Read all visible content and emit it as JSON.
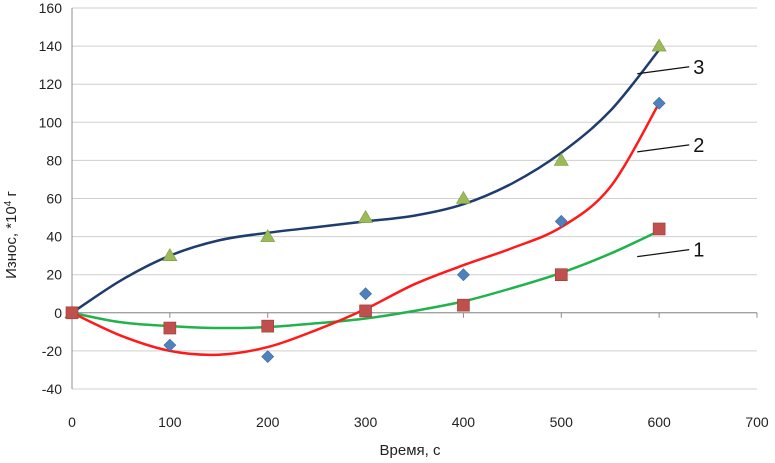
{
  "chart_data": {
    "type": "scatter",
    "xlabel": "Время, с",
    "ylabel_main": "Износ, *10",
    "ylabel_sup": "4",
    "ylabel_unit": " г",
    "xlim": [
      0,
      700
    ],
    "ylim": [
      -40,
      160
    ],
    "xticks": [
      "0",
      "100",
      "200",
      "300",
      "400",
      "500",
      "600",
      "700"
    ],
    "yticks": [
      "-40",
      "-20",
      "0",
      "20",
      "40",
      "60",
      "80",
      "100",
      "120",
      "140",
      "160"
    ],
    "grid": "horizontal",
    "series": [
      {
        "label": "1",
        "marker": "square",
        "marker_color": "#c0504d",
        "line_color": "#22b24c",
        "x": [
          0,
          100,
          200,
          300,
          400,
          500,
          600
        ],
        "values": [
          0,
          -8,
          -7,
          1,
          4,
          20,
          44
        ],
        "trend": [
          [
            0,
            0
          ],
          [
            50,
            -5
          ],
          [
            100,
            -7
          ],
          [
            150,
            -8
          ],
          [
            200,
            -7.5
          ],
          [
            250,
            -5.5
          ],
          [
            300,
            -3
          ],
          [
            350,
            1
          ],
          [
            400,
            6
          ],
          [
            450,
            13
          ],
          [
            500,
            21
          ],
          [
            550,
            31
          ],
          [
            600,
            43
          ]
        ]
      },
      {
        "label": "2",
        "marker": "diamond",
        "marker_color": "#4f81bd",
        "line_color": "#ff1a1a",
        "x": [
          0,
          100,
          200,
          300,
          400,
          500,
          600
        ],
        "values": [
          0,
          -17,
          -23,
          10,
          20,
          48,
          110
        ],
        "trend": [
          [
            0,
            0
          ],
          [
            50,
            -12
          ],
          [
            100,
            -20
          ],
          [
            150,
            -22
          ],
          [
            200,
            -18
          ],
          [
            250,
            -9
          ],
          [
            300,
            2
          ],
          [
            350,
            15
          ],
          [
            400,
            25
          ],
          [
            450,
            34
          ],
          [
            500,
            45
          ],
          [
            550,
            66
          ],
          [
            600,
            110
          ]
        ]
      },
      {
        "label": "3",
        "marker": "triangle",
        "marker_color": "#9bbb59",
        "line_color": "#1f3c6e",
        "x": [
          0,
          100,
          200,
          300,
          400,
          500,
          600
        ],
        "values": [
          0,
          30,
          40,
          50,
          60,
          80,
          140
        ],
        "trend": [
          [
            0,
            0
          ],
          [
            50,
            17
          ],
          [
            100,
            30
          ],
          [
            150,
            38
          ],
          [
            200,
            42
          ],
          [
            250,
            45
          ],
          [
            300,
            48
          ],
          [
            350,
            51
          ],
          [
            400,
            57
          ],
          [
            450,
            68
          ],
          [
            500,
            84
          ],
          [
            550,
            106
          ],
          [
            600,
            138
          ]
        ]
      }
    ],
    "annotations": [
      {
        "text": "1",
        "target": [
          595,
          30
        ]
      },
      {
        "text": "2",
        "target": [
          595,
          85
        ]
      },
      {
        "text": "3",
        "target": [
          595,
          126
        ]
      }
    ]
  }
}
